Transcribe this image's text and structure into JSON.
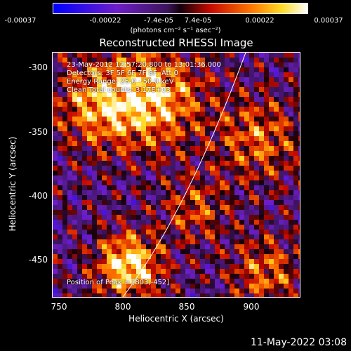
{
  "colorbar": {
    "ticks": [
      "-0.00037",
      "-0.00022",
      "-7.4e-05",
      "7.4e-05",
      "0.00022",
      "0.00037"
    ],
    "units": "(photons cm⁻² s⁻¹ asec⁻²)"
  },
  "title": "Reconstructed RHESSI Image",
  "info": {
    "time": "23-May-2012 12:57:20.800 to 13:01:36.000",
    "detectors": "Detectors: 3F 5F 6F 7F 8F, Att 0",
    "energy": "Energy Range: 25.0 - 50.0 keV",
    "clean": "Clean     Total counts: 3.17E+03",
    "peak": "Position of Peak = [803,-452]"
  },
  "axes": {
    "xlabel": "Heliocentric X (arcsec)",
    "ylabel": "Heliocentric Y (arcsec)",
    "xticks": [
      "750",
      "800",
      "850",
      "900"
    ],
    "yticks": [
      "-300",
      "-350",
      "-400",
      "-450"
    ],
    "xlim": [
      745,
      935
    ],
    "ylim": [
      -480,
      -290
    ]
  },
  "footer": "11-May-2022 03:08"
}
